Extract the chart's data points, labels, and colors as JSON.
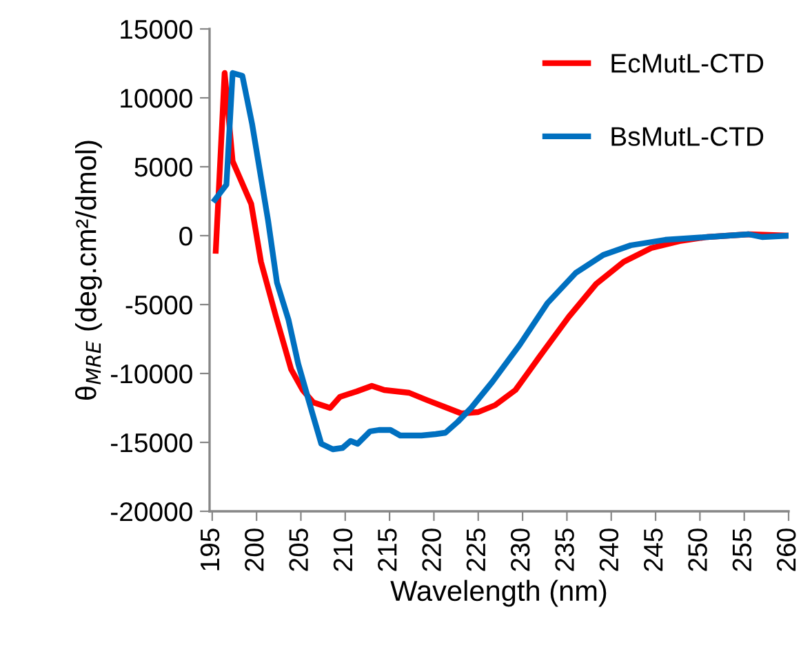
{
  "chart_data": {
    "type": "line",
    "xlabel": "Wavelength (nm)",
    "ylabel": "θ$_{MRE}$ (deg.cm²/dmol)",
    "xlim": [
      194.7,
      260
    ],
    "xticks": [
      195,
      200,
      205,
      210,
      215,
      220,
      225,
      230,
      235,
      240,
      245,
      250,
      255,
      260
    ],
    "ylim": [
      -20000,
      15000
    ],
    "yticks": [
      -20000,
      -15000,
      -10000,
      -5000,
      0,
      5000,
      10000,
      15000
    ],
    "grid": false,
    "legend": "top right",
    "marker": "none",
    "line_style": "solid",
    "series": [
      {
        "name": "EcMutL-CTD",
        "color": "#ff0000",
        "x": [
          195.4,
          196.4,
          197.3,
          199.4,
          200.5,
          202.2,
          203.9,
          205.2,
          206.4,
          208.3,
          209.4,
          211.3,
          213,
          214.4,
          217.2,
          219.1,
          221.1,
          223.1,
          225,
          226.9,
          229.2,
          232,
          235.2,
          238.3,
          241.4,
          244.5,
          247.7,
          250.8,
          255.5,
          260
        ],
        "values": [
          -1100,
          11800,
          5400,
          2300,
          -1900,
          -5900,
          -9700,
          -11200,
          -12100,
          -12500,
          -11700,
          -11300,
          -10900,
          -11200,
          -11400,
          -11900,
          -12400,
          -12900,
          -12800,
          -12300,
          -11200,
          -8700,
          -5900,
          -3500,
          -1900,
          -900,
          -400,
          -100,
          100,
          0
        ]
      },
      {
        "name": "BsMutL-CTD",
        "color": "#0070c0",
        "x": [
          195.3,
          196.6,
          197.3,
          198.4,
          199.5,
          201.3,
          202.3,
          203.6,
          204.7,
          206.3,
          207.3,
          208.6,
          209.7,
          210.6,
          211.4,
          212.8,
          213.8,
          215.1,
          216.2,
          218.6,
          220.2,
          221.3,
          222.7,
          224.2,
          226.6,
          229.7,
          232.8,
          236,
          239.1,
          242.2,
          246.1,
          250.8,
          255.5,
          257,
          260
        ],
        "values": [
          2600,
          3700,
          11800,
          11600,
          8100,
          1100,
          -3400,
          -6100,
          -9300,
          -12900,
          -15100,
          -15500,
          -15400,
          -14900,
          -15100,
          -14200,
          -14100,
          -14100,
          -14500,
          -14500,
          -14400,
          -14300,
          -13500,
          -12500,
          -10600,
          -7900,
          -4900,
          -2700,
          -1400,
          -700,
          -300,
          -100,
          100,
          -100,
          0
        ]
      }
    ]
  }
}
